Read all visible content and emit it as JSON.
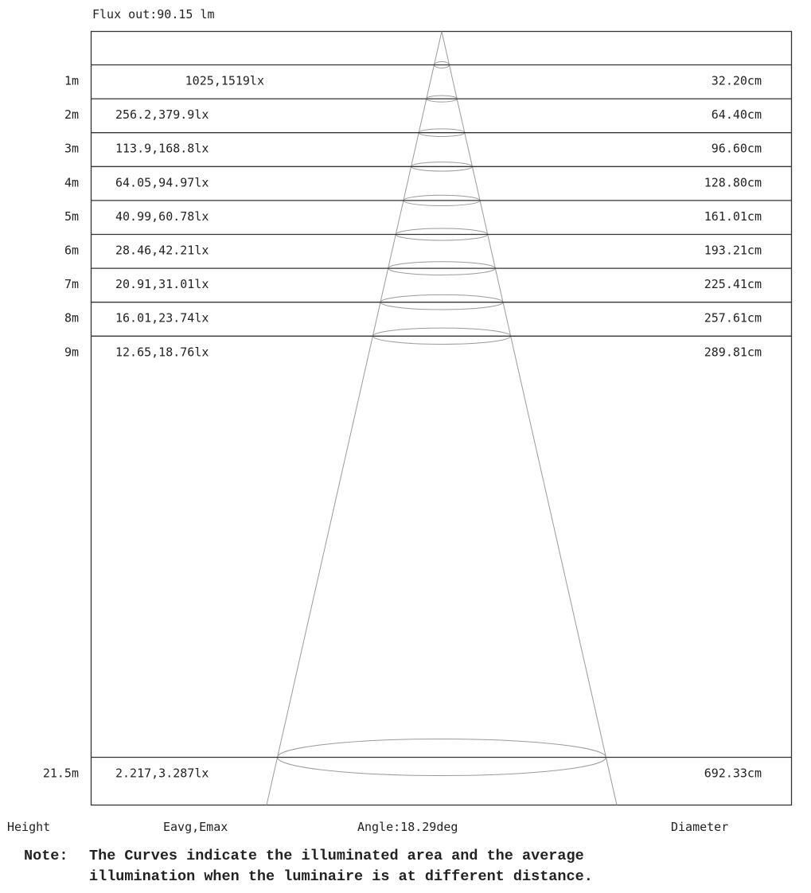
{
  "flux_label": "Flux out:90.15 lm",
  "axis_labels": {
    "height": "Height",
    "eavg_emax": "Eavg,Emax",
    "angle": "Angle:18.29deg",
    "diameter": "Diameter"
  },
  "note": {
    "prefix": "Note:",
    "line1": "The Curves indicate the illuminated area and the average",
    "line2": "illumination when the luminaire is at different distance."
  },
  "chart_data": {
    "type": "table",
    "title": "Flux out:90.15 lm",
    "flux_lm": 90.15,
    "beam_angle_deg": 18.29,
    "columns": [
      "Height",
      "Eavg,Emax",
      "Diameter"
    ],
    "rows": [
      {
        "height": "1m",
        "height_m": 1,
        "illuminance": "1025,1519lx",
        "eavg_lx": 1025,
        "emax_lx": 1519,
        "diameter": "32.20cm",
        "diameter_cm": 32.2
      },
      {
        "height": "2m",
        "height_m": 2,
        "illuminance": "256.2,379.9lx",
        "eavg_lx": 256.2,
        "emax_lx": 379.9,
        "diameter": "64.40cm",
        "diameter_cm": 64.4
      },
      {
        "height": "3m",
        "height_m": 3,
        "illuminance": "113.9,168.8lx",
        "eavg_lx": 113.9,
        "emax_lx": 168.8,
        "diameter": "96.60cm",
        "diameter_cm": 96.6
      },
      {
        "height": "4m",
        "height_m": 4,
        "illuminance": "64.05,94.97lx",
        "eavg_lx": 64.05,
        "emax_lx": 94.97,
        "diameter": "128.80cm",
        "diameter_cm": 128.8
      },
      {
        "height": "5m",
        "height_m": 5,
        "illuminance": "40.99,60.78lx",
        "eavg_lx": 40.99,
        "emax_lx": 60.78,
        "diameter": "161.01cm",
        "diameter_cm": 161.01
      },
      {
        "height": "6m",
        "height_m": 6,
        "illuminance": "28.46,42.21lx",
        "eavg_lx": 28.46,
        "emax_lx": 42.21,
        "diameter": "193.21cm",
        "diameter_cm": 193.21
      },
      {
        "height": "7m",
        "height_m": 7,
        "illuminance": "20.91,31.01lx",
        "eavg_lx": 20.91,
        "emax_lx": 31.01,
        "diameter": "225.41cm",
        "diameter_cm": 225.41
      },
      {
        "height": "8m",
        "height_m": 8,
        "illuminance": "16.01,23.74lx",
        "eavg_lx": 16.01,
        "emax_lx": 23.74,
        "diameter": "257.61cm",
        "diameter_cm": 257.61
      },
      {
        "height": "9m",
        "height_m": 9,
        "illuminance": "12.65,18.76lx",
        "eavg_lx": 12.65,
        "emax_lx": 18.76,
        "diameter": "289.81cm",
        "diameter_cm": 289.81
      },
      {
        "height": "21.5m",
        "height_m": 21.5,
        "illuminance": "2.217,3.287lx",
        "eavg_lx": 2.217,
        "emax_lx": 3.287,
        "diameter": "692.33cm",
        "diameter_cm": 692.33
      }
    ]
  }
}
